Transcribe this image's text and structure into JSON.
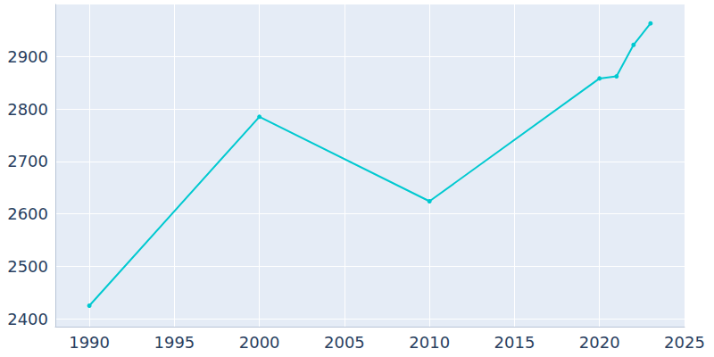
{
  "chart_data": {
    "type": "line",
    "x": [
      1990,
      2000,
      2010,
      2020,
      2021,
      2022,
      2023
    ],
    "values": [
      2425,
      2785,
      2624,
      2858,
      2862,
      2922,
      2963
    ],
    "color": "#00c9d0",
    "marker": "circle",
    "xlim": [
      1988,
      2025
    ],
    "xticks": [
      1990,
      1995,
      2000,
      2005,
      2010,
      2015,
      2020,
      2025
    ],
    "ylim": [
      2385,
      2999
    ],
    "yticks": [
      2400,
      2500,
      2600,
      2700,
      2800,
      2900
    ],
    "grid": true
  }
}
